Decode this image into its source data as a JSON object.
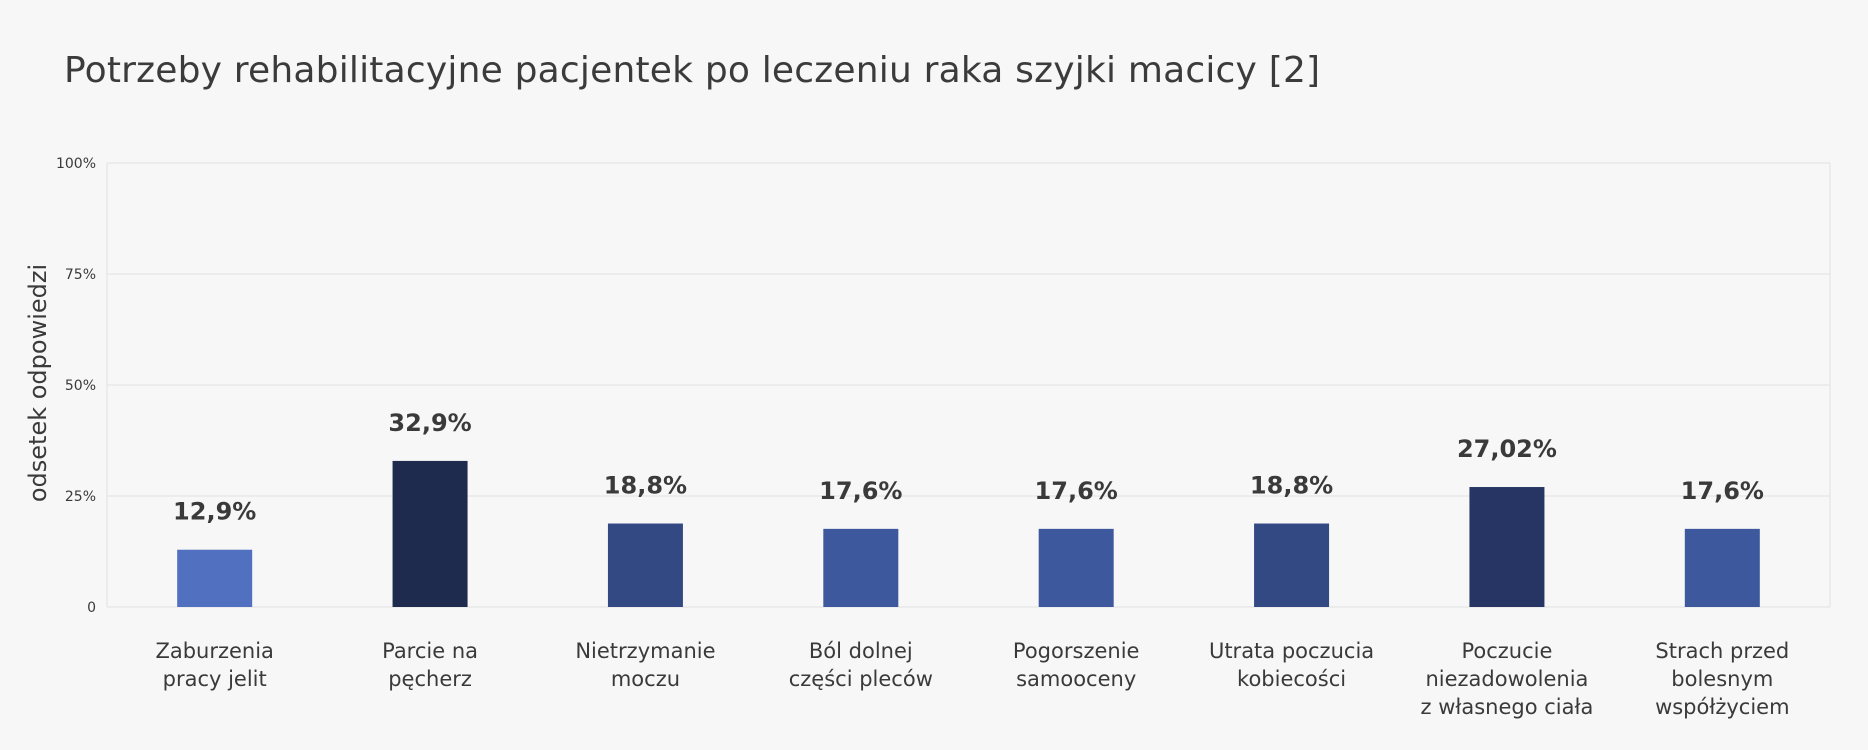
{
  "chart_data": {
    "type": "bar",
    "title": "Potrzeby rehabilitacyjne pacjentek po leczeniu raka szyjki macicy [2]",
    "ylabel": "odsetek odpowiedzi",
    "xlabel": "",
    "ylim": [
      0,
      100
    ],
    "yticks": [
      {
        "value": 0,
        "label": "0"
      },
      {
        "value": 25,
        "label": "25%"
      },
      {
        "value": 50,
        "label": "50%"
      },
      {
        "value": 75,
        "label": "75%"
      },
      {
        "value": 100,
        "label": "100%"
      }
    ],
    "grid": true,
    "categories": [
      [
        "Zaburzenia",
        "pracy jelit"
      ],
      [
        "Parcie na",
        "pęcherz"
      ],
      [
        "Nietrzymanie",
        "moczu"
      ],
      [
        "Ból dolnej",
        "części pleców"
      ],
      [
        "Pogorszenie",
        "samooceny"
      ],
      [
        "Utrata poczucia",
        "kobiecości"
      ],
      [
        "Poczucie",
        "niezadowolenia",
        "z własnego ciała"
      ],
      [
        "Strach przed",
        "bolesnym",
        "współżyciem"
      ]
    ],
    "values": [
      12.9,
      32.9,
      18.8,
      17.6,
      17.6,
      18.8,
      27.02,
      17.6
    ],
    "value_labels": [
      "12,9%",
      "32,9%",
      "18,8%",
      "17,6%",
      "17,6%",
      "18,8%",
      "27,02%",
      "17,6%"
    ],
    "colors": [
      "#5170bf",
      "#1f2b4e",
      "#334983",
      "#3e589e",
      "#3e589e",
      "#334983",
      "#263564",
      "#3e589e"
    ]
  }
}
